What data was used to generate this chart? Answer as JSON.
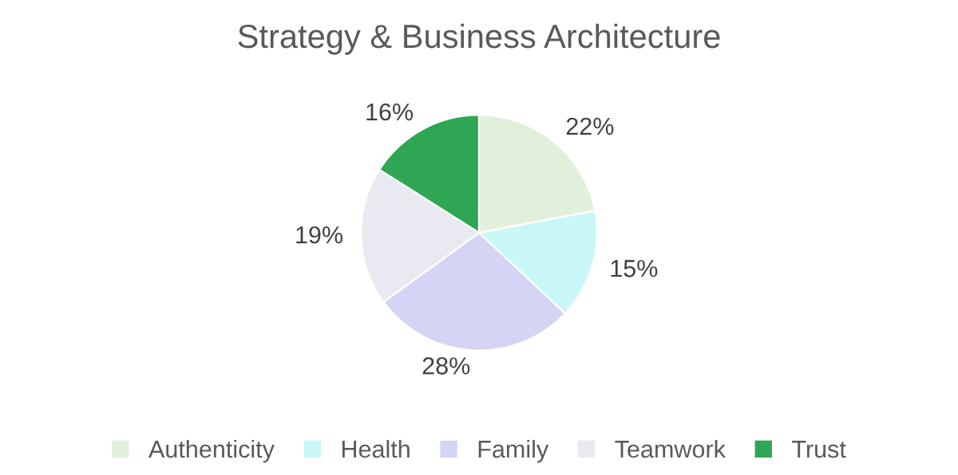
{
  "chart_data": {
    "type": "pie",
    "title": "Strategy & Business Architecture",
    "categories": [
      "Authenticity",
      "Health",
      "Family",
      "Teamwork",
      "Trust"
    ],
    "values": [
      22,
      15,
      28,
      19,
      16
    ],
    "colors": [
      "#e2efda",
      "#c9f7f8",
      "#d4d4f5",
      "#e9e9f1",
      "#2fa653"
    ],
    "value_labels": [
      "22%",
      "15%",
      "28%",
      "19%",
      "16%"
    ],
    "legend": "bottom"
  }
}
